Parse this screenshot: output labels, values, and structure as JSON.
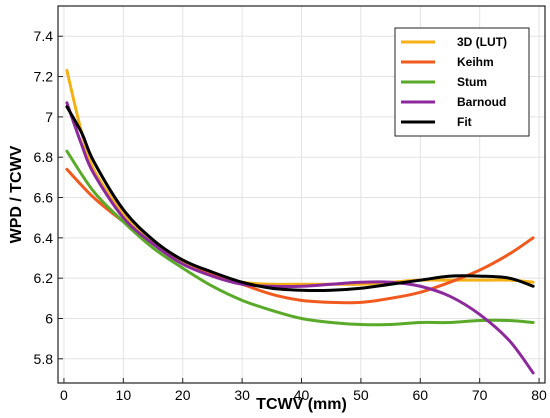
{
  "chart_data": {
    "type": "line",
    "xlabel": "TCWV (mm)",
    "ylabel": "WPD / TCWV",
    "xlim": [
      -1,
      81
    ],
    "ylim": [
      5.68,
      7.55
    ],
    "xticks": [
      0,
      10,
      20,
      30,
      40,
      50,
      60,
      70,
      80
    ],
    "yticks": [
      5.8,
      6,
      6.2,
      6.4,
      6.6,
      6.8,
      7,
      7.2,
      7.4
    ],
    "xtick_labels": [
      "0",
      "10",
      "20",
      "30",
      "40",
      "50",
      "60",
      "70",
      "80"
    ],
    "ytick_labels": [
      "5.8",
      "6",
      "6.2",
      "6.4",
      "6.6",
      "6.8",
      "7",
      "7.2",
      "7.4"
    ],
    "grid": true,
    "legend_position": "top-right",
    "series": [
      {
        "name": "3D (LUT)",
        "color": "#f5b015",
        "x": [
          0.5,
          3,
          5,
          10,
          15,
          20,
          25,
          30,
          35,
          40,
          45,
          50,
          55,
          60,
          65,
          70,
          75,
          79
        ],
        "y": [
          7.23,
          6.92,
          6.74,
          6.52,
          6.38,
          6.28,
          6.22,
          6.18,
          6.17,
          6.17,
          6.17,
          6.17,
          6.18,
          6.19,
          6.19,
          6.19,
          6.19,
          6.18
        ]
      },
      {
        "name": "Keihm",
        "color": "#f05a1e",
        "x": [
          0.5,
          5,
          10,
          15,
          20,
          25,
          30,
          35,
          40,
          45,
          50,
          55,
          60,
          65,
          70,
          75,
          79
        ],
        "y": [
          6.74,
          6.6,
          6.48,
          6.37,
          6.29,
          6.22,
          6.17,
          6.12,
          6.09,
          6.08,
          6.08,
          6.1,
          6.13,
          6.18,
          6.24,
          6.32,
          6.4
        ]
      },
      {
        "name": "Stum",
        "color": "#5aaa2a",
        "x": [
          0.5,
          5,
          10,
          15,
          20,
          25,
          30,
          35,
          40,
          45,
          50,
          55,
          60,
          65,
          70,
          75,
          79
        ],
        "y": [
          6.83,
          6.63,
          6.48,
          6.35,
          6.25,
          6.16,
          6.09,
          6.04,
          6.0,
          5.98,
          5.97,
          5.97,
          5.98,
          5.98,
          5.99,
          5.99,
          5.98
        ]
      },
      {
        "name": "Barnoud",
        "color": "#8c2a9c",
        "x": [
          0.5,
          3,
          5,
          10,
          15,
          20,
          25,
          30,
          35,
          40,
          45,
          50,
          55,
          60,
          65,
          70,
          75,
          79
        ],
        "y": [
          7.07,
          6.86,
          6.72,
          6.5,
          6.37,
          6.27,
          6.21,
          6.17,
          6.16,
          6.16,
          6.17,
          6.18,
          6.18,
          6.16,
          6.11,
          6.02,
          5.89,
          5.73
        ]
      },
      {
        "name": "Fit",
        "color": "#000000",
        "x": [
          0.5,
          3,
          5,
          10,
          15,
          20,
          25,
          30,
          35,
          40,
          45,
          50,
          55,
          60,
          65,
          70,
          75,
          79
        ],
        "y": [
          7.05,
          6.92,
          6.78,
          6.54,
          6.39,
          6.29,
          6.23,
          6.18,
          6.15,
          6.14,
          6.14,
          6.15,
          6.17,
          6.19,
          6.21,
          6.21,
          6.2,
          6.16
        ]
      }
    ]
  }
}
